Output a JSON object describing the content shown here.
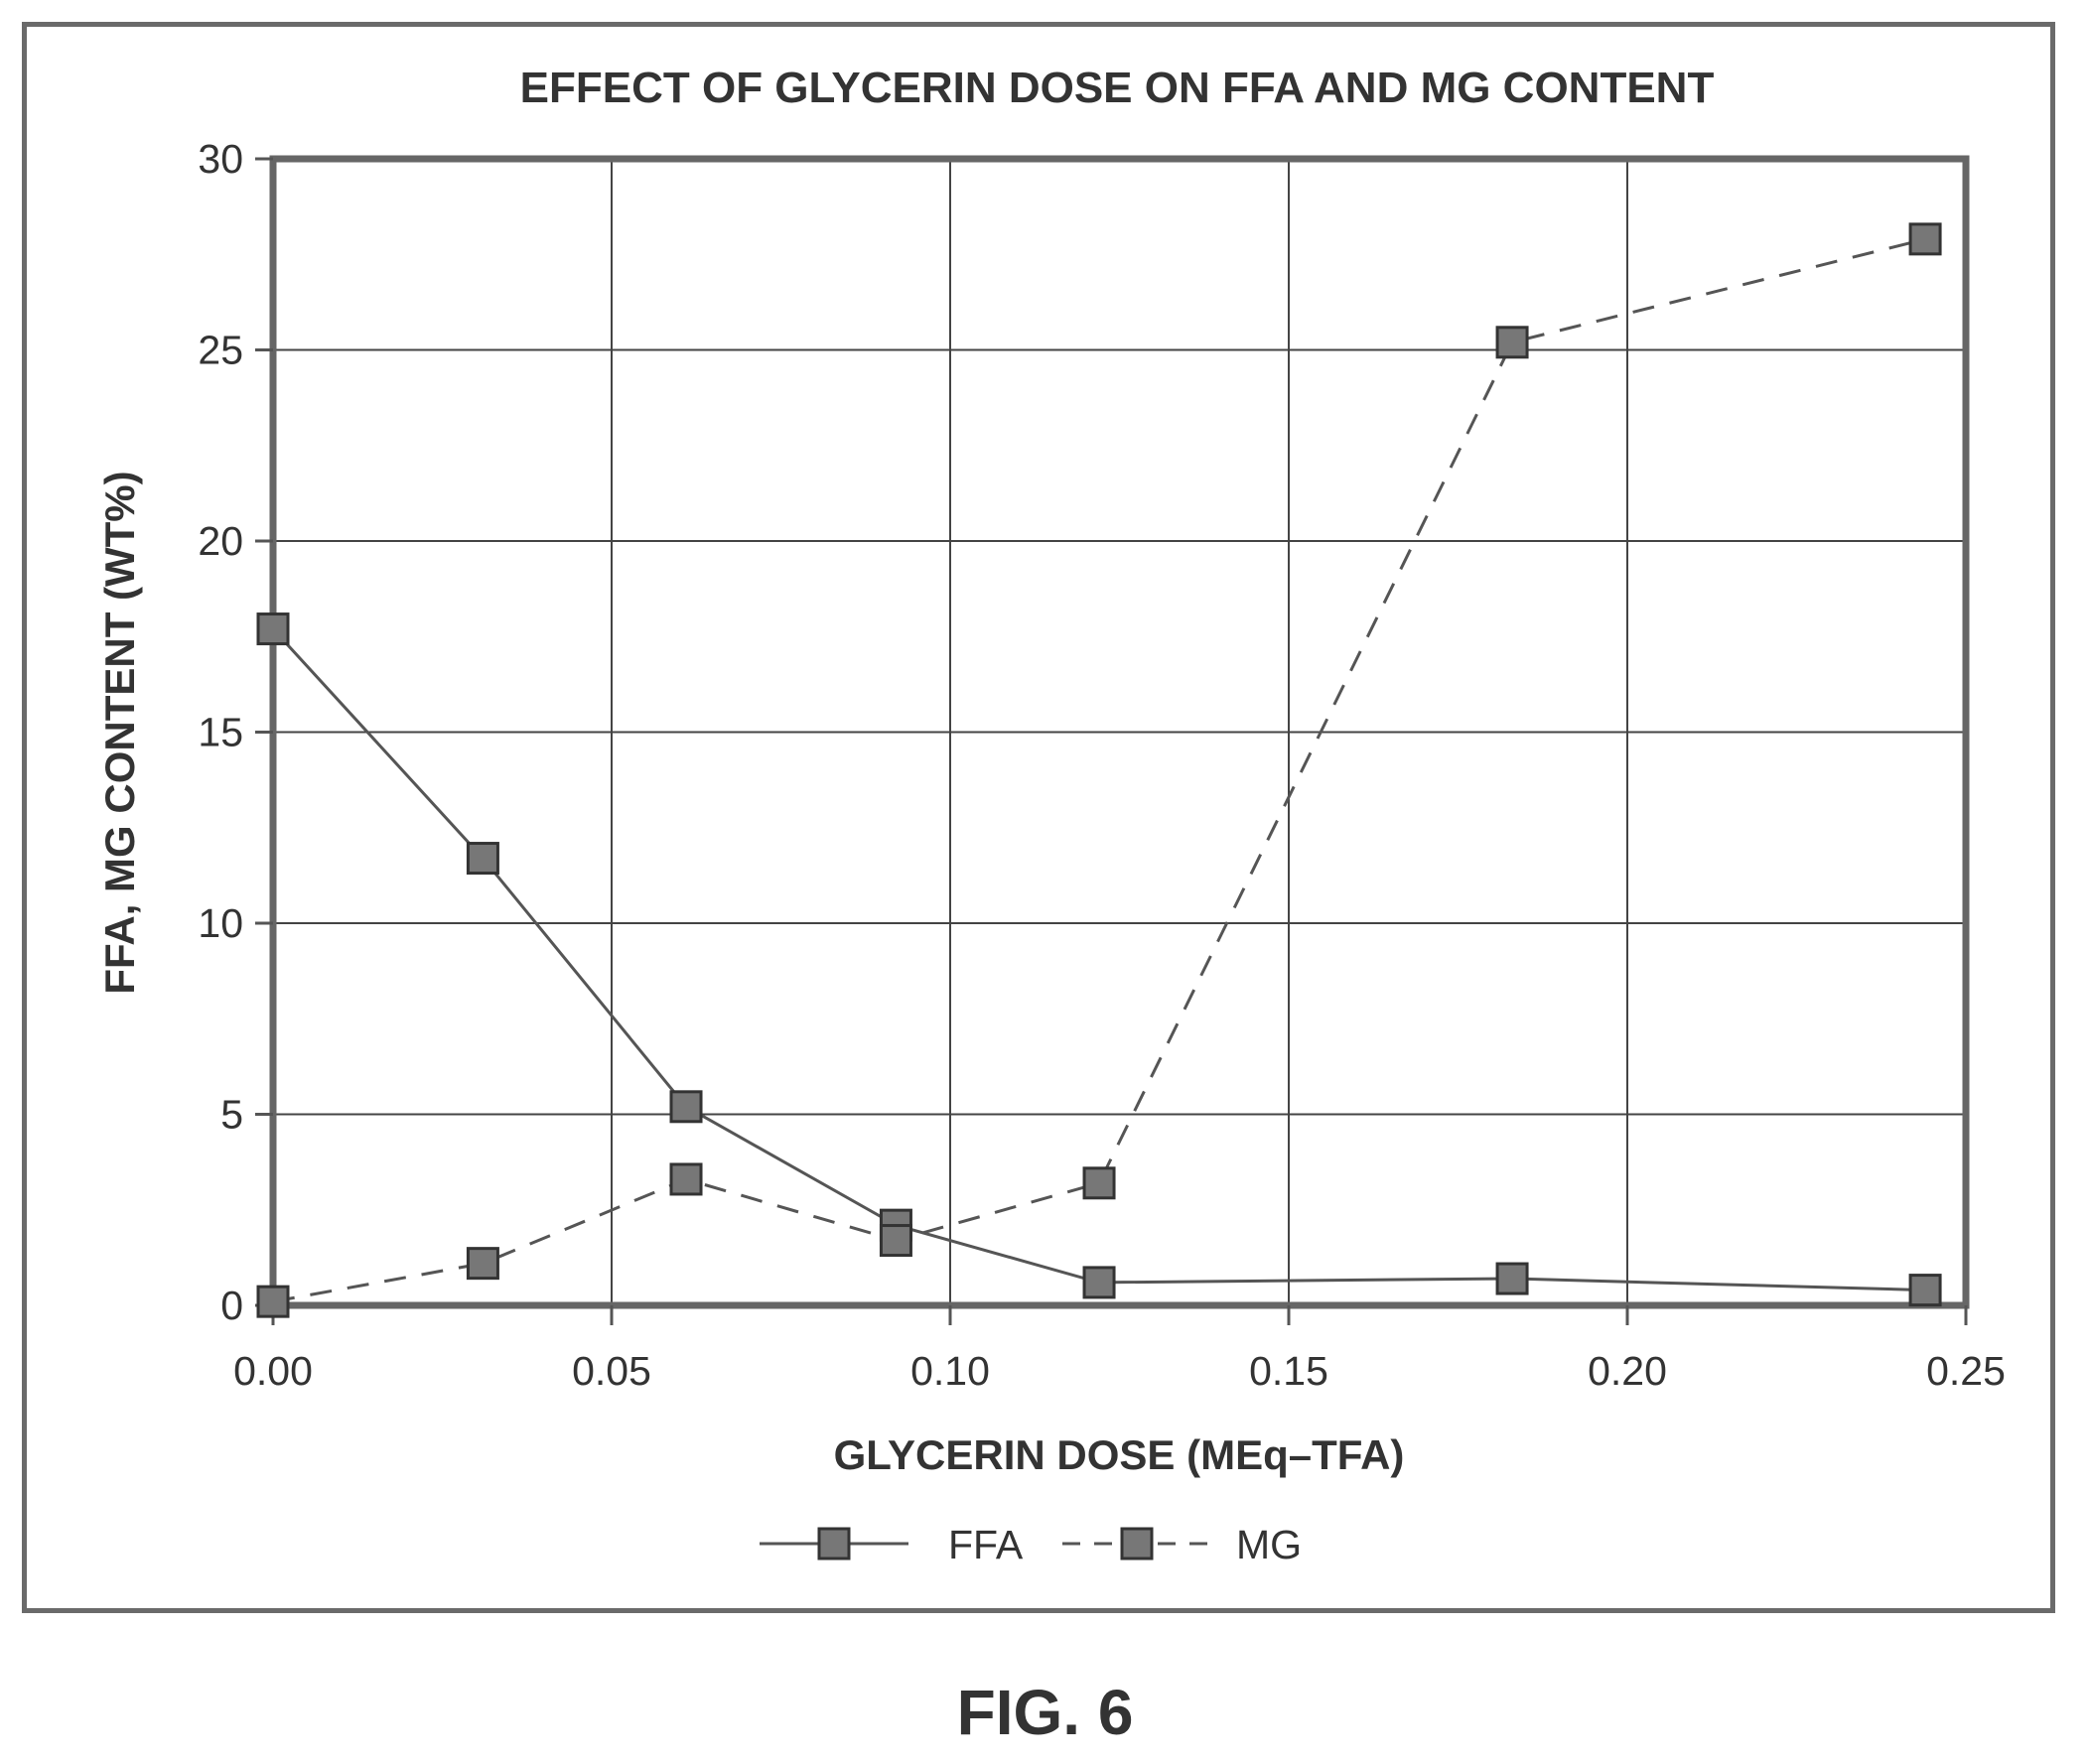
{
  "figure_caption": "FIG. 6",
  "chart_data": {
    "type": "line",
    "title": "EFFECT OF GLYCERIN DOSE ON FFA AND MG CONTENT",
    "xlabel": "GLYCERIN DOSE (MEq–TFA)",
    "ylabel": "FFA, MG CONTENT (WT%)",
    "xlim": [
      0,
      0.25
    ],
    "ylim": [
      0,
      30
    ],
    "x_ticks": [
      "0.00",
      "0.05",
      "0.10",
      "0.15",
      "0.20",
      "0.25"
    ],
    "y_ticks": [
      "0",
      "5",
      "10",
      "15",
      "20",
      "25",
      "30"
    ],
    "grid": true,
    "legend_position": "bottom-center",
    "series": [
      {
        "name": "FFA",
        "line_style": "solid",
        "marker": "square",
        "color": "#555555",
        "x": [
          0.0,
          0.031,
          0.061,
          0.092,
          0.122,
          0.183,
          0.244
        ],
        "y": [
          17.7,
          11.7,
          5.2,
          2.1,
          0.6,
          0.7,
          0.4
        ]
      },
      {
        "name": "MG",
        "line_style": "dashed",
        "marker": "square",
        "color": "#555555",
        "x": [
          0.0,
          0.031,
          0.061,
          0.092,
          0.122,
          0.183,
          0.244
        ],
        "y": [
          0.1,
          1.1,
          3.3,
          1.7,
          3.2,
          25.2,
          27.9
        ]
      }
    ]
  }
}
